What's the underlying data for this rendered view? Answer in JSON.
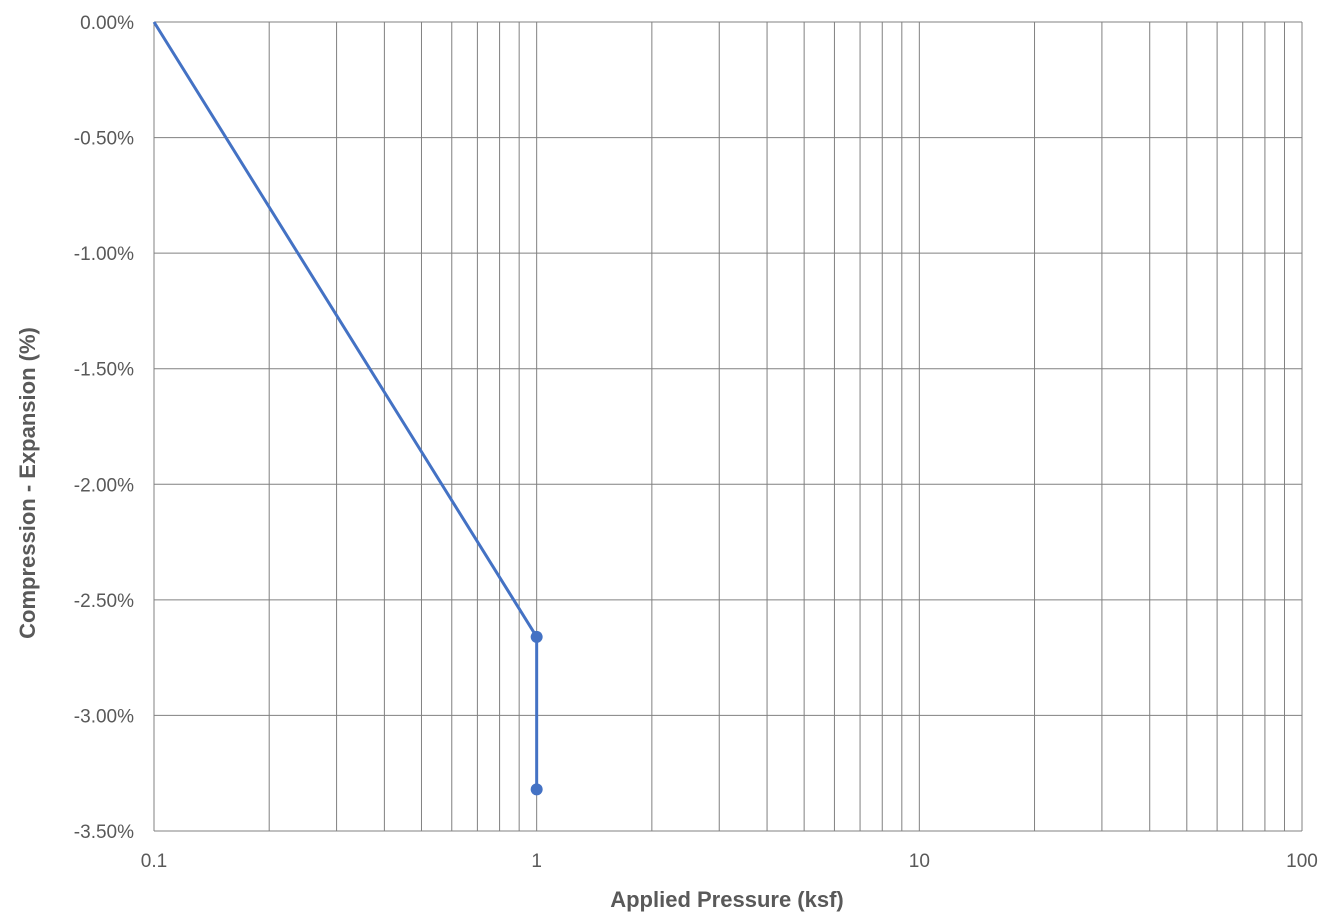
{
  "chart_data": {
    "type": "line",
    "title": "",
    "xlabel": "Applied Pressure (ksf)",
    "ylabel": "Compression - Expansion (%)",
    "xscale": "log",
    "xlim": [
      0.1,
      100
    ],
    "ylim": [
      -3.5,
      0
    ],
    "grid": true,
    "legend": "none",
    "x_ticks": [
      "0.1",
      "1",
      "10",
      "100"
    ],
    "y_ticks": [
      "0.00%",
      "-0.50%",
      "-1.00%",
      "-1.50%",
      "-2.00%",
      "-2.50%",
      "-3.00%",
      "-3.50%"
    ],
    "series": [
      {
        "color": "#4472C4",
        "points": [
          {
            "x": 0.1,
            "y": -0.0,
            "marker": false
          },
          {
            "x": 1.0,
            "y": -2.66,
            "marker": true
          },
          {
            "x": 1.0,
            "y": -3.32,
            "marker": true
          }
        ]
      }
    ]
  }
}
